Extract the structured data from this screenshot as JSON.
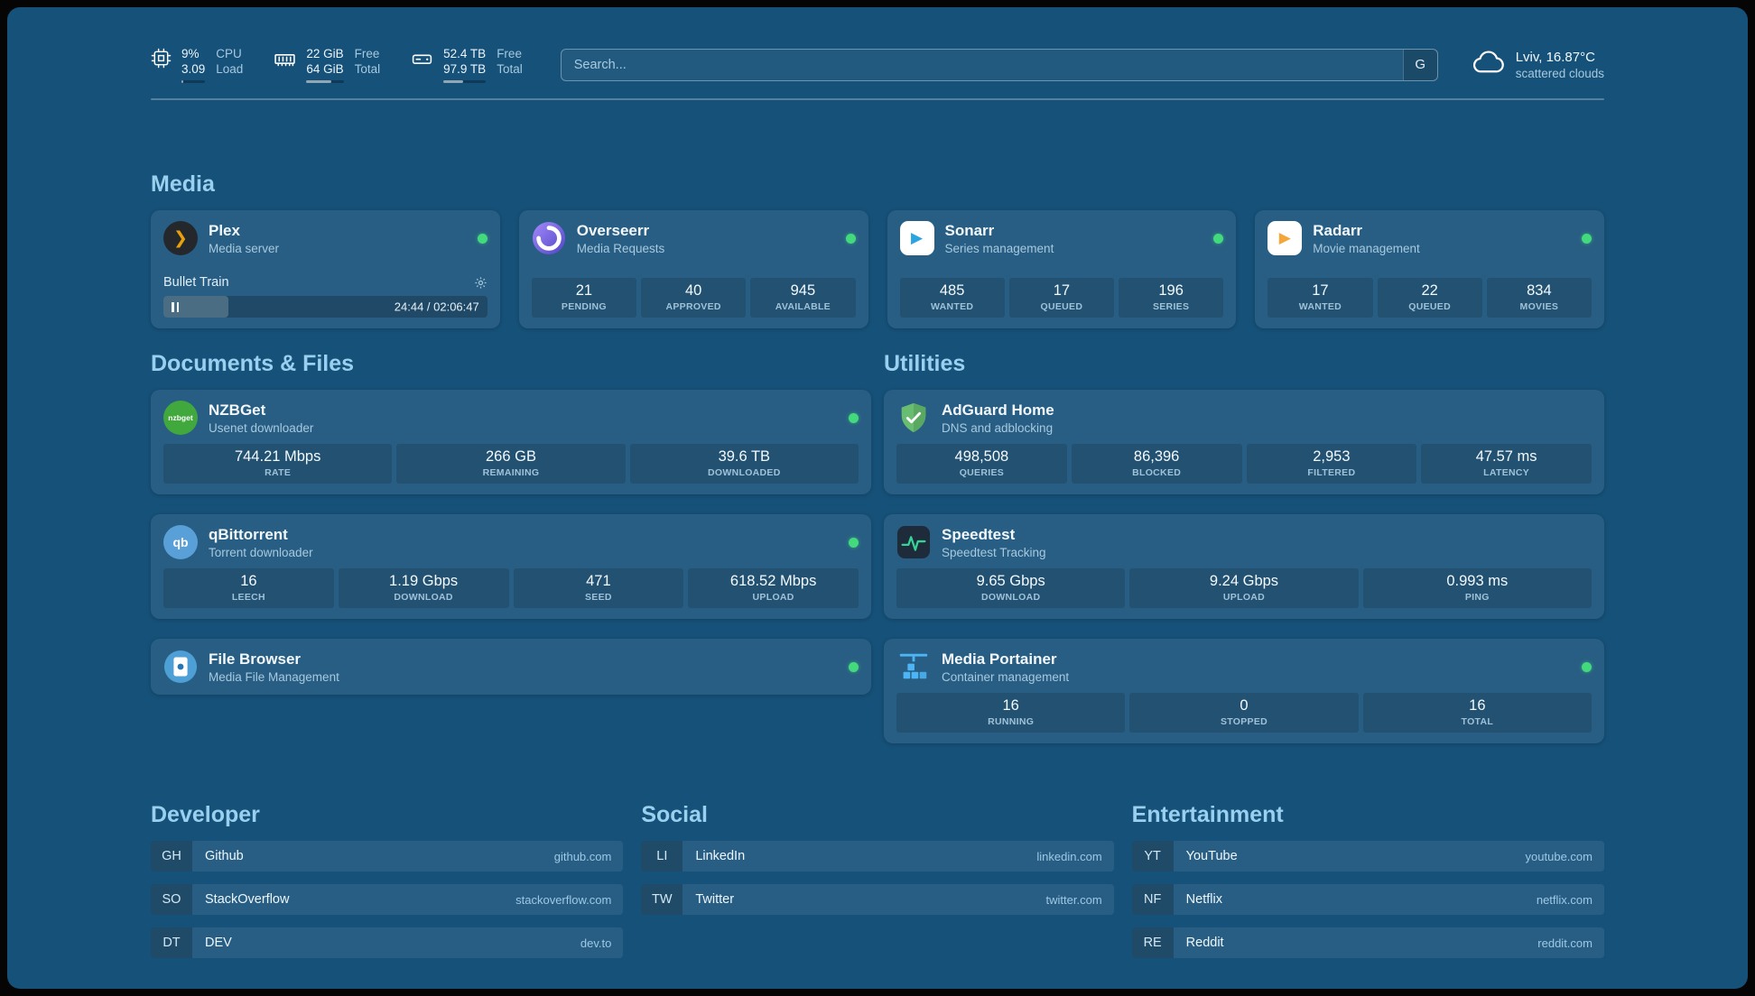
{
  "header": {
    "resources": [
      {
        "primary": "9%",
        "secondary": "3.09",
        "primary_label": "CPU",
        "secondary_label": "Load",
        "progress_pct": 9
      },
      {
        "primary": "22 GiB",
        "secondary": "64 GiB",
        "primary_label": "Free",
        "secondary_label": "Total",
        "progress_pct": 66
      },
      {
        "primary": "52.4 TB",
        "secondary": "97.9 TB",
        "primary_label": "Free",
        "secondary_label": "Total",
        "progress_pct": 46
      }
    ],
    "search": {
      "placeholder": "Search...",
      "button_label": "G"
    },
    "weather": {
      "location": "Lviv, 16.87°C",
      "condition": "scattered clouds"
    }
  },
  "sections": {
    "media": {
      "title": "Media",
      "apps": [
        {
          "name": "Plex",
          "subtitle": "Media server",
          "status": "online",
          "player": {
            "title": "Bullet Train",
            "time": "24:44 / 02:06:47",
            "progress_pct": 20
          }
        },
        {
          "name": "Overseerr",
          "subtitle": "Media Requests",
          "status": "online",
          "stats": [
            {
              "value": "21",
              "label": "PENDING"
            },
            {
              "value": "40",
              "label": "APPROVED"
            },
            {
              "value": "945",
              "label": "AVAILABLE"
            }
          ]
        },
        {
          "name": "Sonarr",
          "subtitle": "Series management",
          "status": "online",
          "stats": [
            {
              "value": "485",
              "label": "WANTED"
            },
            {
              "value": "17",
              "label": "QUEUED"
            },
            {
              "value": "196",
              "label": "SERIES"
            }
          ]
        },
        {
          "name": "Radarr",
          "subtitle": "Movie management",
          "status": "online",
          "stats": [
            {
              "value": "17",
              "label": "WANTED"
            },
            {
              "value": "22",
              "label": "QUEUED"
            },
            {
              "value": "834",
              "label": "MOVIES"
            }
          ]
        }
      ]
    },
    "documents": {
      "title": "Documents & Files",
      "apps": [
        {
          "name": "NZBGet",
          "subtitle": "Usenet downloader",
          "status": "online",
          "stats": [
            {
              "value": "744.21 Mbps",
              "label": "RATE"
            },
            {
              "value": "266 GB",
              "label": "REMAINING"
            },
            {
              "value": "39.6 TB",
              "label": "DOWNLOADED"
            }
          ]
        },
        {
          "name": "qBittorrent",
          "subtitle": "Torrent downloader",
          "status": "online",
          "stats": [
            {
              "value": "16",
              "label": "LEECH"
            },
            {
              "value": "1.19 Gbps",
              "label": "DOWNLOAD"
            },
            {
              "value": "471",
              "label": "SEED"
            },
            {
              "value": "618.52 Mbps",
              "label": "UPLOAD"
            }
          ]
        },
        {
          "name": "File Browser",
          "subtitle": "Media File Management",
          "status": "online",
          "stats": []
        }
      ]
    },
    "utilities": {
      "title": "Utilities",
      "apps": [
        {
          "name": "AdGuard Home",
          "subtitle": "DNS and adblocking",
          "stats": [
            {
              "value": "498,508",
              "label": "QUERIES"
            },
            {
              "value": "86,396",
              "label": "BLOCKED"
            },
            {
              "value": "2,953",
              "label": "FILTERED"
            },
            {
              "value": "47.57 ms",
              "label": "LATENCY"
            }
          ]
        },
        {
          "name": "Speedtest",
          "subtitle": "Speedtest Tracking",
          "stats": [
            {
              "value": "9.65 Gbps",
              "label": "DOWNLOAD"
            },
            {
              "value": "9.24 Gbps",
              "label": "UPLOAD"
            },
            {
              "value": "0.993 ms",
              "label": "PING"
            }
          ]
        },
        {
          "name": "Media Portainer",
          "subtitle": "Container management",
          "status": "online",
          "stats": [
            {
              "value": "16",
              "label": "RUNNING"
            },
            {
              "value": "0",
              "label": "STOPPED"
            },
            {
              "value": "16",
              "label": "TOTAL"
            }
          ]
        }
      ]
    }
  },
  "bookmarks": [
    {
      "title": "Developer",
      "links": [
        {
          "abbr": "GH",
          "name": "Github",
          "url": "github.com"
        },
        {
          "abbr": "SO",
          "name": "StackOverflow",
          "url": "stackoverflow.com"
        },
        {
          "abbr": "DT",
          "name": "DEV",
          "url": "dev.to"
        }
      ]
    },
    {
      "title": "Social",
      "links": [
        {
          "abbr": "LI",
          "name": "LinkedIn",
          "url": "linkedin.com"
        },
        {
          "abbr": "TW",
          "name": "Twitter",
          "url": "twitter.com"
        }
      ]
    },
    {
      "title": "Entertainment",
      "links": [
        {
          "abbr": "YT",
          "name": "YouTube",
          "url": "youtube.com"
        },
        {
          "abbr": "NF",
          "name": "Netflix",
          "url": "netflix.com"
        },
        {
          "abbr": "RE",
          "name": "Reddit",
          "url": "reddit.com"
        }
      ]
    }
  ],
  "icons": {
    "plex_glyph": "❯",
    "sonarr_glyph": "▶",
    "radarr_glyph": "▶",
    "nzbget_glyph": "nzbget",
    "qbittorrent_glyph": "qb"
  },
  "colors": {
    "background": "#165179",
    "status_online": "#43d97d",
    "plex_amber": "#e8a00d",
    "sonarr_blue": "#2aa5df",
    "radarr_orange": "#f5a63a",
    "nzbget_green": "#41a83e",
    "adguard_green": "#68bd71",
    "speedtest_green": "#36d399",
    "portainer_blue": "#4cb5f5"
  }
}
